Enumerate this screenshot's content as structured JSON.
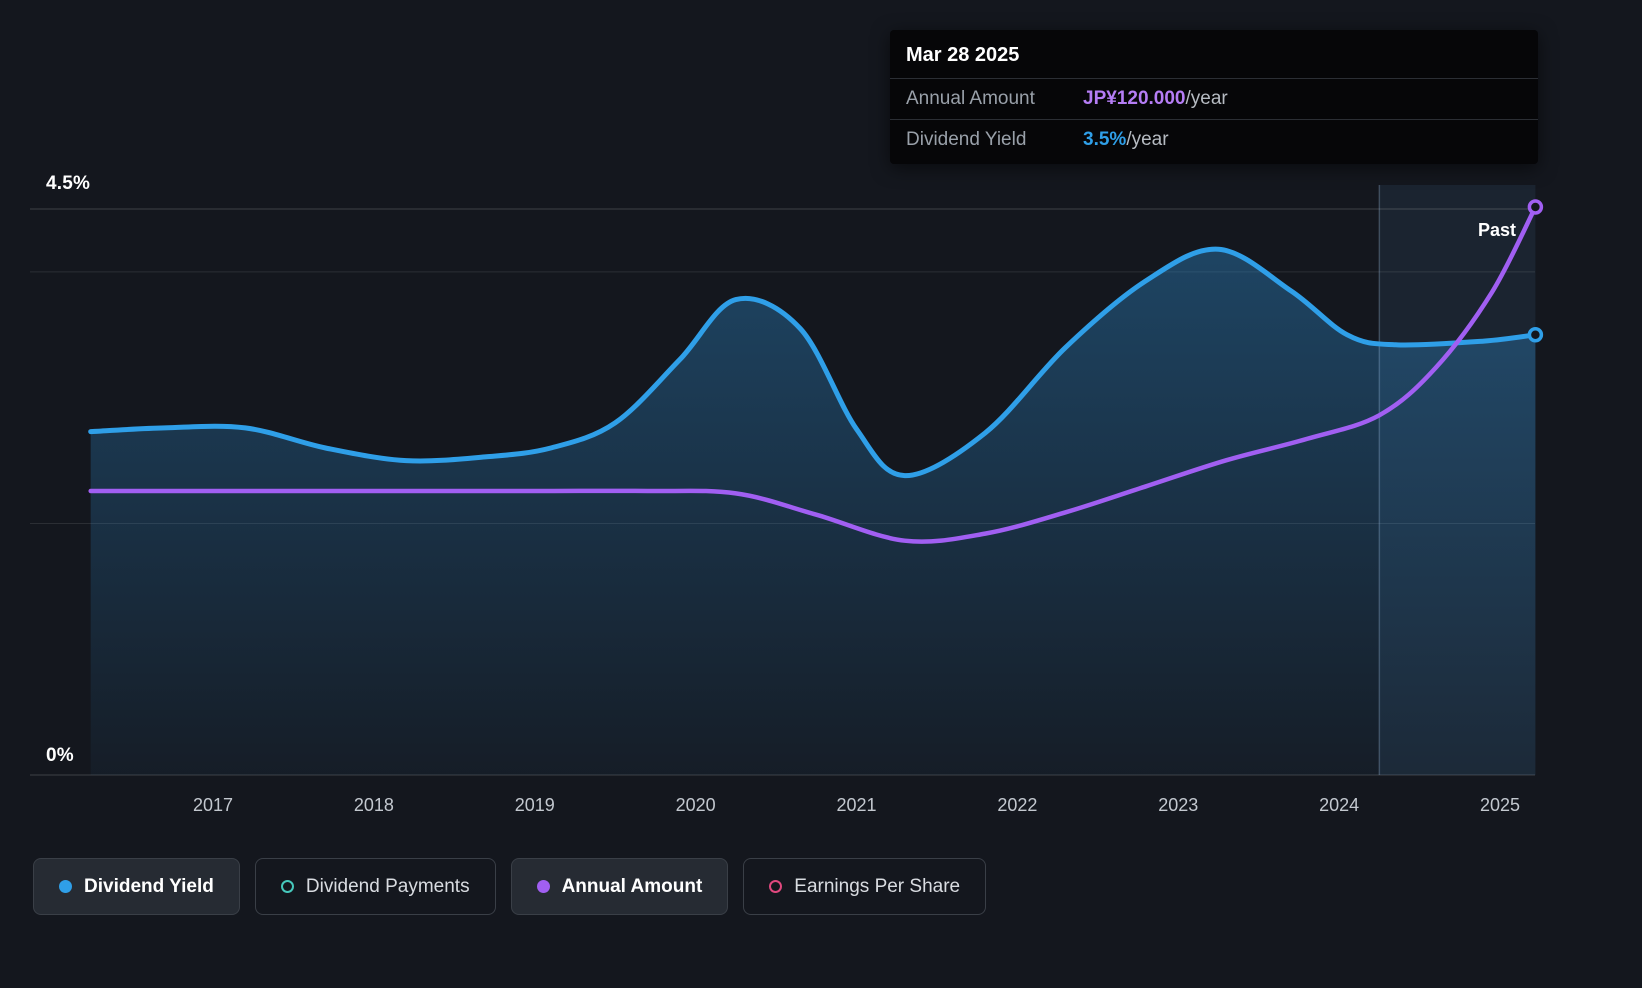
{
  "tooltip": {
    "date": "Mar 28 2025",
    "rows": [
      {
        "label": "Annual Amount",
        "value": "JP¥120.000",
        "suffix": "/year",
        "value_color": "#b57df5"
      },
      {
        "label": "Dividend Yield",
        "value": "3.5%",
        "suffix": "/year",
        "value_color": "#2f9fe8"
      }
    ]
  },
  "past_label": "Past",
  "y_axis": {
    "top_label": "4.5%",
    "bottom_label": "0%"
  },
  "x_axis": {
    "ticks": [
      "2017",
      "2018",
      "2019",
      "2020",
      "2021",
      "2022",
      "2023",
      "2024",
      "2025"
    ]
  },
  "legend": [
    {
      "label": "Dividend Yield",
      "marker": "filled",
      "color": "#2f9fe8",
      "selected": true
    },
    {
      "label": "Dividend Payments",
      "marker": "hollow",
      "color": "#46c8bc",
      "selected": false
    },
    {
      "label": "Annual Amount",
      "marker": "filled",
      "color": "#a15ff2",
      "selected": true
    },
    {
      "label": "Earnings Per Share",
      "marker": "hollow",
      "color": "#e0487e",
      "selected": false
    }
  ],
  "chart_data": {
    "type": "line",
    "x_range": [
      2016.24,
      2025.22
    ],
    "percent_axis": {
      "min": 0,
      "max": 4.5,
      "gridlines": [
        0,
        2,
        4,
        4.5
      ],
      "labeled_values": [
        "4.5%",
        "0%"
      ]
    },
    "amount_axis": {
      "min": 0,
      "max": 124.7,
      "unit": "JP¥"
    },
    "divider_x": 2024.25,
    "highlight_region": [
      2024.25,
      2025.22
    ],
    "colors": {
      "background": "#14171e",
      "grid": "#ffffff",
      "area_fill": "#2e8fd4",
      "highlight_band": "rgba(98,160,220,0.10)",
      "divider": "rgba(165,198,235,0.28)"
    },
    "series": [
      {
        "name": "Dividend Yield",
        "unit": "%",
        "axis": "percent",
        "color": "#2f9fe8",
        "area": true,
        "end_marker": true,
        "end_value_label": "3.5%/year",
        "x": [
          2016.24,
          2016.7,
          2017.2,
          2017.7,
          2018.2,
          2018.7,
          2019.1,
          2019.5,
          2019.9,
          2020.25,
          2020.65,
          2021.0,
          2021.3,
          2021.8,
          2022.3,
          2022.8,
          2023.25,
          2023.7,
          2024.05,
          2024.35,
          2024.9,
          2025.22
        ],
        "y": [
          2.73,
          2.76,
          2.76,
          2.6,
          2.5,
          2.53,
          2.6,
          2.8,
          3.3,
          3.78,
          3.55,
          2.75,
          2.38,
          2.72,
          3.4,
          3.93,
          4.18,
          3.85,
          3.5,
          3.42,
          3.45,
          3.5
        ]
      },
      {
        "name": "Annual Amount",
        "unit": "JP¥/year",
        "axis": "amount",
        "color": "#a15ff2",
        "area": false,
        "end_marker": true,
        "end_value_label": "JP¥120.000/year",
        "x": [
          2016.24,
          2017.0,
          2018.0,
          2019.0,
          2019.7,
          2020.25,
          2020.75,
          2021.3,
          2021.8,
          2022.3,
          2022.8,
          2023.3,
          2023.8,
          2024.25,
          2024.6,
          2024.95,
          2025.22
        ],
        "y": [
          60,
          60,
          60,
          60,
          60,
          59.5,
          55,
          49.5,
          51,
          55.5,
          61,
          66.5,
          71,
          76,
          86,
          102,
          120
        ]
      }
    ]
  }
}
